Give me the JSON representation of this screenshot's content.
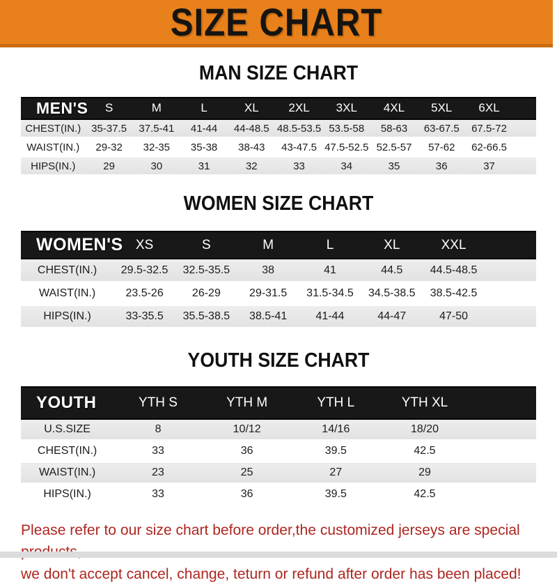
{
  "banner": {
    "title": "SIZE CHART"
  },
  "colors": {
    "accent_orange": "#E8811C",
    "header_bar_black": "#181818",
    "row_gray": "#E6E6E6",
    "note_red": "#AE2620"
  },
  "sections": {
    "man": {
      "title": "MAN SIZE CHART",
      "table": {
        "label": "MEN'S",
        "columns": [
          "S",
          "M",
          "L",
          "XL",
          "2XL",
          "3XL",
          "4XL",
          "5XL",
          "6XL"
        ],
        "rows": [
          {
            "label": "CHEST(IN.)",
            "values": [
              "35-37.5",
              "37.5-41",
              "41-44",
              "44-48.5",
              "48.5-53.5",
              "53.5-58",
              "58-63",
              "63-67.5",
              "67.5-72"
            ]
          },
          {
            "label": "WAIST(IN.)",
            "values": [
              "29-32",
              "32-35",
              "35-38",
              "38-43",
              "43-47.5",
              "47.5-52.5",
              "52.5-57",
              "57-62",
              "62-66.5"
            ]
          },
          {
            "label": "HIPS(IN.)",
            "values": [
              "29",
              "30",
              "31",
              "32",
              "33",
              "34",
              "35",
              "36",
              "37"
            ]
          }
        ]
      }
    },
    "women": {
      "title": "WOMEN SIZE CHART",
      "table": {
        "label": "WOMEN'S",
        "columns": [
          "XS",
          "S",
          "M",
          "L",
          "XL",
          "XXL"
        ],
        "rows": [
          {
            "label": "CHEST(IN.)",
            "values": [
              "29.5-32.5",
              "32.5-35.5",
              "38",
              "41",
              "44.5",
              "44.5-48.5"
            ]
          },
          {
            "label": "WAIST(IN.)",
            "values": [
              "23.5-26",
              "26-29",
              "29-31.5",
              "31.5-34.5",
              "34.5-38.5",
              "38.5-42.5"
            ]
          },
          {
            "label": "HIPS(IN.)",
            "values": [
              "33-35.5",
              "35.5-38.5",
              "38.5-41",
              "41-44",
              "44-47",
              "47-50"
            ]
          }
        ]
      }
    },
    "youth": {
      "title": "YOUTH SIZE CHART",
      "table": {
        "label": "YOUTH",
        "columns": [
          "YTH S",
          "YTH M",
          "YTH L",
          "YTH XL"
        ],
        "rows": [
          {
            "label": "U.S.SIZE",
            "values": [
              "8",
              "10/12",
              "14/16",
              "18/20"
            ]
          },
          {
            "label": "CHEST(IN.)",
            "values": [
              "33",
              "36",
              "39.5",
              "42.5"
            ]
          },
          {
            "label": "WAIST(IN.)",
            "values": [
              "23",
              "25",
              "27",
              "29"
            ]
          },
          {
            "label": "HIPS(IN.)",
            "values": [
              "33",
              "36",
              "39.5",
              "42.5"
            ]
          }
        ]
      }
    }
  },
  "footer": {
    "line1": "Please refer to our size chart before order,the customized jerseys are special products,",
    "line2": "we don't accept cancel, change, teturn or refund after order has been placed!"
  }
}
